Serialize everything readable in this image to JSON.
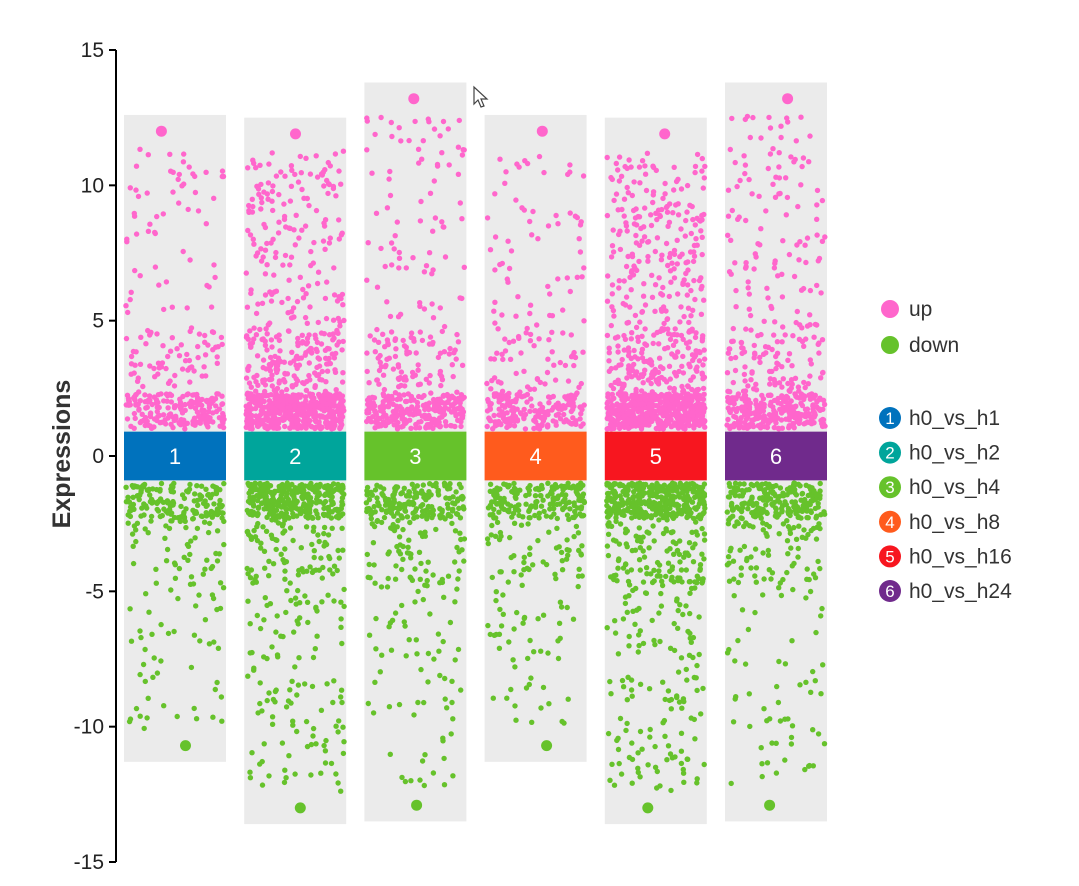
{
  "chart_data": {
    "type": "scatter",
    "subtype": "jitter-strip",
    "title": "",
    "xlabel": "",
    "ylabel": "Expressions",
    "ylim": [
      -15,
      15
    ],
    "y_ticks": [
      15,
      10,
      5,
      0,
      -5,
      -10,
      -15
    ],
    "grid": false,
    "legend_position": "right",
    "category_legend": [
      {
        "name": "up",
        "color": "#FF66CC"
      },
      {
        "name": "down",
        "color": "#66C22B"
      }
    ],
    "groups": [
      {
        "label": "1",
        "name": "h0_vs_h1",
        "color": "#0072BD",
        "up_max": 12.0,
        "down_min": -10.7,
        "up_n": 320,
        "down_n": 260
      },
      {
        "label": "2",
        "name": "h0_vs_h2",
        "color": "#00A59B",
        "up_max": 11.9,
        "down_min": -13.0,
        "up_n": 820,
        "down_n": 520
      },
      {
        "label": "3",
        "name": "h0_vs_h4",
        "color": "#66C22B",
        "up_max": 13.2,
        "down_min": -12.9,
        "up_n": 430,
        "down_n": 320
      },
      {
        "label": "4",
        "name": "h0_vs_h8",
        "color": "#FF5B1D",
        "up_max": 12.0,
        "down_min": -10.7,
        "up_n": 300,
        "down_n": 280
      },
      {
        "label": "5",
        "name": "h0_vs_h16",
        "color": "#F7161F",
        "up_max": 11.9,
        "down_min": -13.0,
        "up_n": 900,
        "down_n": 640
      },
      {
        "label": "6",
        "name": "h0_vs_h24",
        "color": "#702A8C",
        "up_max": 13.2,
        "down_min": -12.9,
        "up_n": 470,
        "down_n": 340
      }
    ]
  }
}
